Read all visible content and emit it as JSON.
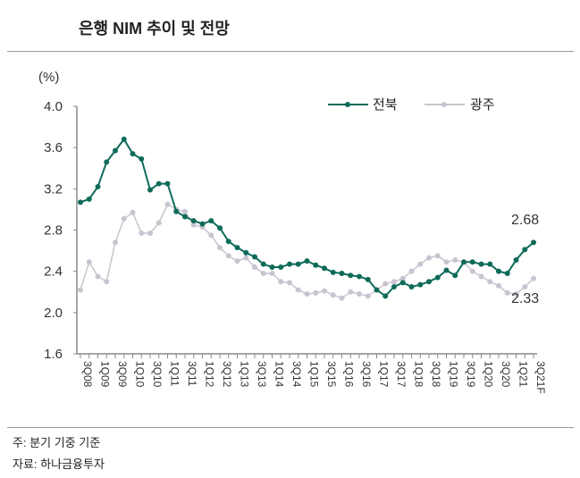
{
  "title": "은행 NIM 추이 및 전망",
  "notes": [
    "주: 분기 기중 기준",
    "자료: 하나금융투자"
  ],
  "chart_data": {
    "type": "line",
    "ylabel": "(%)",
    "ylim": [
      1.6,
      4.0
    ],
    "yticks": [
      "1.6",
      "2.0",
      "2.4",
      "2.8",
      "3.2",
      "3.6",
      "4.0"
    ],
    "grid": false,
    "legend_position": "top-right",
    "x": [
      "3Q08",
      "4Q08",
      "1Q09",
      "2Q09",
      "3Q09",
      "4Q09",
      "1Q10",
      "2Q10",
      "3Q10",
      "4Q10",
      "1Q11",
      "2Q11",
      "3Q11",
      "4Q11",
      "1Q12",
      "2Q12",
      "3Q12",
      "4Q12",
      "1Q13",
      "2Q13",
      "3Q13",
      "4Q13",
      "1Q14",
      "2Q14",
      "3Q14",
      "4Q14",
      "1Q15",
      "2Q15",
      "3Q15",
      "4Q15",
      "1Q16",
      "2Q16",
      "3Q16",
      "4Q16",
      "1Q17",
      "2Q17",
      "3Q17",
      "4Q17",
      "1Q18",
      "2Q18",
      "3Q18",
      "4Q18",
      "1Q19",
      "2Q19",
      "3Q19",
      "4Q19",
      "1Q20",
      "2Q20",
      "3Q20",
      "4Q20",
      "1Q21",
      "2Q21",
      "3Q21F"
    ],
    "xtick_labels": [
      "3Q08",
      "1Q09",
      "3Q09",
      "1Q10",
      "3Q10",
      "1Q11",
      "3Q11",
      "1Q12",
      "3Q12",
      "1Q13",
      "3Q13",
      "1Q14",
      "3Q14",
      "1Q15",
      "3Q15",
      "1Q16",
      "3Q16",
      "1Q17",
      "3Q17",
      "1Q18",
      "3Q18",
      "1Q19",
      "3Q19",
      "1Q20",
      "3Q20",
      "1Q21",
      "3Q21F"
    ],
    "series": [
      {
        "name": "전북",
        "color": "#0e6b5a",
        "values": [
          3.07,
          3.1,
          3.22,
          3.46,
          3.57,
          3.68,
          3.54,
          3.49,
          3.19,
          3.25,
          3.25,
          2.98,
          2.93,
          2.89,
          2.86,
          2.89,
          2.82,
          2.69,
          2.63,
          2.58,
          2.54,
          2.47,
          2.44,
          2.44,
          2.47,
          2.47,
          2.5,
          2.46,
          2.43,
          2.39,
          2.38,
          2.36,
          2.35,
          2.32,
          2.22,
          2.16,
          2.25,
          2.29,
          2.25,
          2.27,
          2.3,
          2.34,
          2.41,
          2.36,
          2.49,
          2.49,
          2.47,
          2.47,
          2.4,
          2.38,
          2.51,
          2.61,
          2.68
        ]
      },
      {
        "name": "광주",
        "color": "#c9c4cf",
        "values": [
          2.22,
          2.49,
          2.35,
          2.3,
          2.68,
          2.91,
          2.97,
          2.77,
          2.77,
          2.87,
          3.05,
          3.0,
          2.98,
          2.85,
          2.83,
          2.75,
          2.63,
          2.55,
          2.5,
          2.53,
          2.44,
          2.38,
          2.38,
          2.3,
          2.29,
          2.22,
          2.18,
          2.19,
          2.21,
          2.17,
          2.14,
          2.2,
          2.18,
          2.16,
          2.22,
          2.28,
          2.3,
          2.33,
          2.4,
          2.47,
          2.53,
          2.55,
          2.49,
          2.51,
          2.49,
          2.4,
          2.35,
          2.3,
          2.26,
          2.19,
          2.18,
          2.25,
          2.33
        ]
      }
    ],
    "annotations": [
      "2.68",
      "2.33"
    ]
  }
}
